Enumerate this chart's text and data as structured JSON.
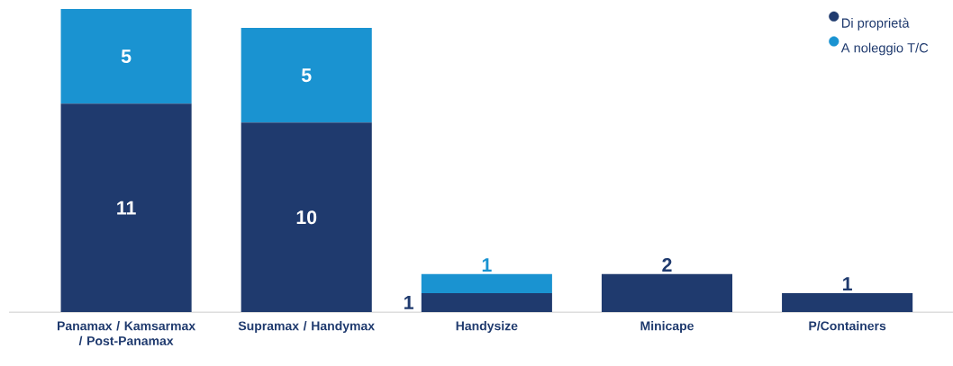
{
  "chart_data": {
    "type": "bar",
    "stacked": true,
    "legend": "top right",
    "marker": "circle",
    "categories": [
      "Panamax / Kamsarmax / Post-Panamax",
      "Supramax / Handymax",
      "Handysize",
      "Minicape",
      "P/Containers"
    ],
    "series": [
      {
        "name": "Di proprietà",
        "color": "#1f3a6e",
        "values": [
          11,
          10,
          1,
          2,
          1
        ],
        "value_labels": [
          "11",
          "10",
          "1",
          "2",
          "1"
        ]
      },
      {
        "name": "A noleggio T/C",
        "color": "#1a93d1",
        "values": [
          5,
          5,
          1,
          0,
          0
        ],
        "value_labels": [
          "5",
          "5",
          "1",
          null,
          null
        ]
      }
    ]
  }
}
